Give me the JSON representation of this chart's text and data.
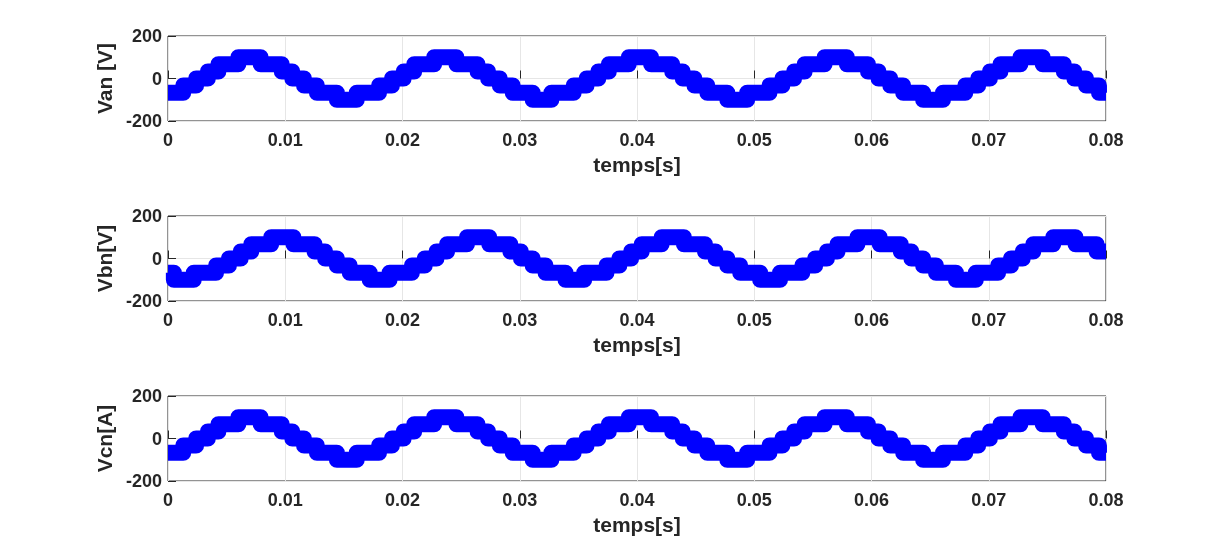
{
  "chart_data": [
    {
      "type": "step",
      "ylabel": "Van [V]",
      "xlabel": "temps[s]",
      "xlim": [
        0,
        0.08
      ],
      "ylim": [
        -200,
        200
      ],
      "xticks": [
        0,
        0.01,
        0.02,
        0.03,
        0.04,
        0.05,
        0.06,
        0.07,
        0.08
      ],
      "yticks": [
        -200,
        0,
        200
      ],
      "grid": true,
      "x": [
        0,
        0.0013,
        0.0024,
        0.0034,
        0.0043,
        0.006,
        0.0079,
        0.0097,
        0.0106,
        0.0116,
        0.0127,
        0.0144,
        0.0161,
        0.018,
        0.0191,
        0.0201,
        0.021,
        0.0227,
        0.0246,
        0.0264,
        0.0273,
        0.0283,
        0.0294,
        0.0311,
        0.0327,
        0.0346,
        0.0357,
        0.0367,
        0.0376,
        0.0393,
        0.0412,
        0.043,
        0.0439,
        0.0449,
        0.046,
        0.0477,
        0.0494,
        0.0513,
        0.0524,
        0.0534,
        0.0543,
        0.056,
        0.0579,
        0.0597,
        0.0606,
        0.0616,
        0.0627,
        0.0644,
        0.0661,
        0.068,
        0.0691,
        0.0701,
        0.071,
        0.0727,
        0.0746,
        0.0764,
        0.0773,
        0.0783,
        0.0794,
        0.08
      ],
      "series": [
        {
          "color": "#0000ff",
          "values": [
            -67,
            -33,
            0,
            33,
            67,
            100,
            67,
            33,
            0,
            -33,
            -67,
            -100,
            -67,
            -33,
            0,
            33,
            67,
            100,
            67,
            33,
            0,
            -33,
            -67,
            -100,
            -67,
            -33,
            0,
            33,
            67,
            100,
            67,
            33,
            0,
            -33,
            -67,
            -100,
            -67,
            -33,
            0,
            33,
            67,
            100,
            67,
            33,
            0,
            -33,
            -67,
            -100,
            -67,
            -33,
            0,
            33,
            67,
            100,
            67,
            33,
            0,
            -33,
            -67,
            -67
          ]
        }
      ]
    },
    {
      "type": "step",
      "ylabel": "Vbn[V]",
      "xlabel": "temps[s]",
      "xlim": [
        0,
        0.08
      ],
      "ylim": [
        -200,
        200
      ],
      "xticks": [
        0,
        0.01,
        0.02,
        0.03,
        0.04,
        0.05,
        0.06,
        0.07,
        0.08
      ],
      "yticks": [
        -200,
        0,
        200
      ],
      "grid": true,
      "x": [
        0,
        0.0005,
        0.0022,
        0.0041,
        0.0052,
        0.0062,
        0.0071,
        0.0088,
        0.0107,
        0.0125,
        0.0134,
        0.0144,
        0.0155,
        0.0172,
        0.0189,
        0.0208,
        0.0219,
        0.0229,
        0.0238,
        0.0255,
        0.0274,
        0.0292,
        0.0301,
        0.0311,
        0.0322,
        0.0339,
        0.0355,
        0.0374,
        0.0385,
        0.0395,
        0.0404,
        0.0421,
        0.044,
        0.0458,
        0.0467,
        0.0477,
        0.0488,
        0.0505,
        0.0522,
        0.0541,
        0.0552,
        0.0562,
        0.0571,
        0.0588,
        0.0607,
        0.0625,
        0.0634,
        0.0644,
        0.0655,
        0.0672,
        0.0689,
        0.0708,
        0.0719,
        0.0729,
        0.0738,
        0.0755,
        0.0774,
        0.0792,
        0.08
      ],
      "series": [
        {
          "color": "#0000ff",
          "values": [
            -67,
            -100,
            -67,
            -33,
            0,
            33,
            67,
            100,
            67,
            33,
            0,
            -33,
            -67,
            -100,
            -67,
            -33,
            0,
            33,
            67,
            100,
            67,
            33,
            0,
            -33,
            -67,
            -100,
            -67,
            -33,
            0,
            33,
            67,
            100,
            67,
            33,
            0,
            -33,
            -67,
            -100,
            -67,
            -33,
            0,
            33,
            67,
            100,
            67,
            33,
            0,
            -33,
            -67,
            -100,
            -67,
            -33,
            0,
            33,
            67,
            100,
            67,
            33,
            33
          ]
        }
      ]
    },
    {
      "type": "step",
      "ylabel": "Vcn[A]",
      "xlabel": "temps[s]",
      "xlim": [
        0,
        0.08
      ],
      "ylim": [
        -200,
        200
      ],
      "xticks": [
        0,
        0.01,
        0.02,
        0.03,
        0.04,
        0.05,
        0.06,
        0.07,
        0.08
      ],
      "yticks": [
        -200,
        0,
        200
      ],
      "grid": true,
      "x": [
        0,
        0.0013,
        0.0024,
        0.0034,
        0.0043,
        0.006,
        0.0079,
        0.0097,
        0.0106,
        0.0116,
        0.0127,
        0.0144,
        0.0161,
        0.018,
        0.0191,
        0.0201,
        0.021,
        0.0227,
        0.0246,
        0.0264,
        0.0273,
        0.0283,
        0.0294,
        0.0311,
        0.0327,
        0.0346,
        0.0357,
        0.0367,
        0.0376,
        0.0393,
        0.0412,
        0.043,
        0.0439,
        0.0449,
        0.046,
        0.0477,
        0.0494,
        0.0513,
        0.0524,
        0.0534,
        0.0543,
        0.056,
        0.0579,
        0.0597,
        0.0606,
        0.0616,
        0.0627,
        0.0644,
        0.0661,
        0.068,
        0.0691,
        0.0701,
        0.071,
        0.0727,
        0.0746,
        0.0764,
        0.0773,
        0.0783,
        0.0794,
        0.08
      ],
      "series": [
        {
          "color": "#0000ff",
          "values": [
            -67,
            -33,
            0,
            33,
            67,
            100,
            67,
            33,
            0,
            -33,
            -67,
            -100,
            -67,
            -33,
            0,
            33,
            67,
            100,
            67,
            33,
            0,
            -33,
            -67,
            -100,
            -67,
            -33,
            0,
            33,
            67,
            100,
            67,
            33,
            0,
            -33,
            -67,
            -100,
            -67,
            -33,
            0,
            33,
            67,
            100,
            67,
            33,
            0,
            -33,
            -67,
            -100,
            -67,
            -33,
            0,
            33,
            67,
            100,
            67,
            33,
            0,
            -33,
            -67,
            -67
          ]
        }
      ]
    }
  ]
}
